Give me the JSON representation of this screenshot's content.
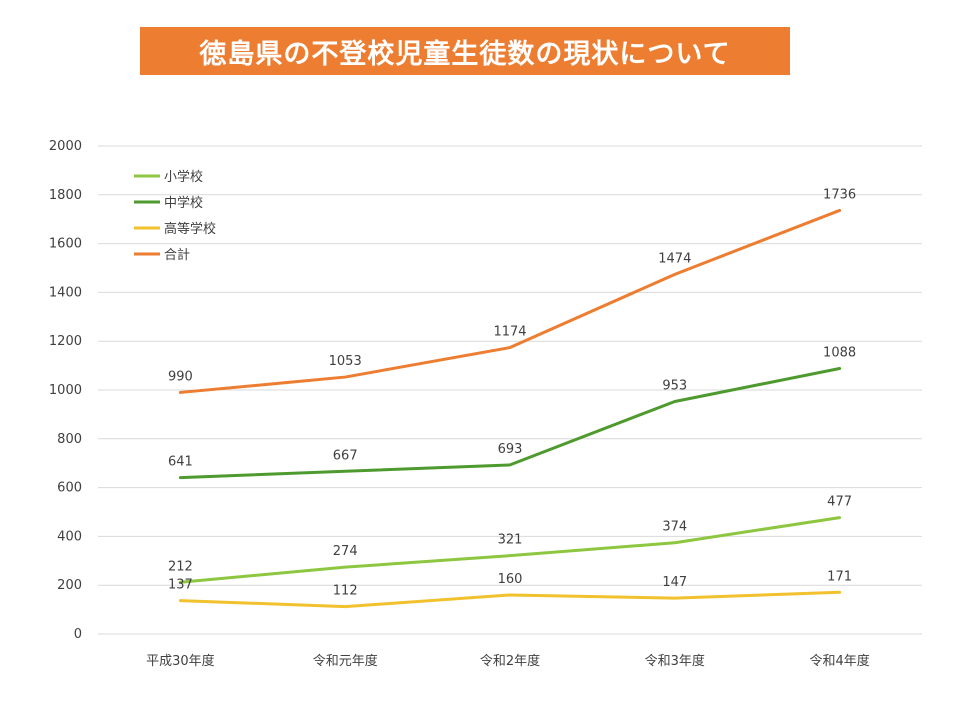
{
  "chart_data": {
    "type": "line",
    "title": "徳島県の不登校児童生徒数の現状について",
    "xlabel": "",
    "ylabel": "",
    "categories": [
      "平成30年度",
      "令和元年度",
      "令和2年度",
      "令和3年度",
      "令和4年度"
    ],
    "ylim": [
      0,
      2000
    ],
    "yticks": [
      0,
      200,
      400,
      600,
      800,
      1000,
      1200,
      1400,
      1600,
      1800,
      2000
    ],
    "grid": true,
    "legend": "top-left",
    "series": [
      {
        "name": "小学校",
        "values": [
          212,
          274,
          321,
          374,
          477
        ],
        "color": "#8DC63F"
      },
      {
        "name": "中学校",
        "values": [
          641,
          667,
          693,
          953,
          1088
        ],
        "color": "#4E9A2E"
      },
      {
        "name": "高等学校",
        "values": [
          137,
          112,
          160,
          147,
          171
        ],
        "color": "#F2C12E"
      },
      {
        "name": "合計",
        "values": [
          990,
          1053,
          1174,
          1474,
          1736
        ],
        "color": "#ED7D31"
      }
    ]
  }
}
